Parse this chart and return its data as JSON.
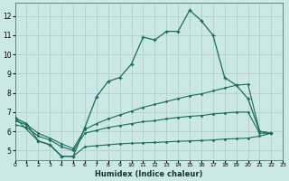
{
  "xlabel": "Humidex (Indice chaleur)",
  "bg_color": "#cce8e6",
  "grid_color": "#aaccca",
  "line_color": "#1a6b5a",
  "xlim": [
    0,
    23
  ],
  "ylim": [
    4.5,
    12.7
  ],
  "xtick_vals": [
    0,
    1,
    2,
    3,
    4,
    5,
    6,
    7,
    8,
    9,
    10,
    11,
    12,
    13,
    14,
    15,
    16,
    17,
    18,
    19,
    20,
    21,
    22,
    23
  ],
  "ytick_vals": [
    5,
    6,
    7,
    8,
    9,
    10,
    11,
    12
  ],
  "line1_x": [
    0,
    1,
    2,
    3,
    4,
    5,
    6,
    7,
    8,
    9,
    10,
    11,
    12,
    13,
    14,
    15,
    16,
    17,
    18,
    19,
    20,
    21,
    22
  ],
  "line1_y": [
    6.7,
    6.4,
    5.5,
    5.3,
    4.7,
    4.7,
    6.2,
    7.8,
    8.6,
    8.8,
    9.5,
    10.9,
    10.75,
    11.2,
    11.2,
    12.3,
    11.75,
    11.0,
    8.8,
    8.4,
    7.7,
    6.0,
    5.9
  ],
  "line2_x": [
    0,
    1,
    2,
    3,
    4,
    5,
    6,
    7,
    8,
    9,
    10,
    11,
    12,
    13,
    14,
    15,
    16,
    17,
    18,
    19,
    20,
    21,
    22
  ],
  "line2_y": [
    6.55,
    6.35,
    5.9,
    5.65,
    5.35,
    5.1,
    6.1,
    6.4,
    6.65,
    6.85,
    7.05,
    7.25,
    7.4,
    7.55,
    7.7,
    7.85,
    7.95,
    8.1,
    8.25,
    8.4,
    8.45,
    6.0,
    5.9
  ],
  "line3_x": [
    0,
    1,
    2,
    3,
    4,
    5,
    6,
    7,
    8,
    9,
    10,
    11,
    12,
    13,
    14,
    15,
    16,
    17,
    18,
    19,
    20,
    21,
    22
  ],
  "line3_y": [
    6.35,
    6.2,
    5.75,
    5.55,
    5.2,
    5.0,
    5.9,
    6.05,
    6.2,
    6.3,
    6.4,
    6.5,
    6.55,
    6.65,
    6.72,
    6.78,
    6.82,
    6.9,
    6.95,
    7.0,
    7.0,
    5.9,
    5.9
  ],
  "line4_x": [
    0,
    2,
    3,
    4,
    5,
    6,
    7,
    8,
    9,
    10,
    11,
    12,
    13,
    14,
    15,
    16,
    17,
    18,
    19,
    20,
    21,
    22
  ],
  "line4_y": [
    6.7,
    5.5,
    5.3,
    4.7,
    4.7,
    5.2,
    5.25,
    5.3,
    5.35,
    5.38,
    5.4,
    5.42,
    5.45,
    5.48,
    5.5,
    5.52,
    5.55,
    5.6,
    5.62,
    5.65,
    5.75,
    5.9
  ]
}
